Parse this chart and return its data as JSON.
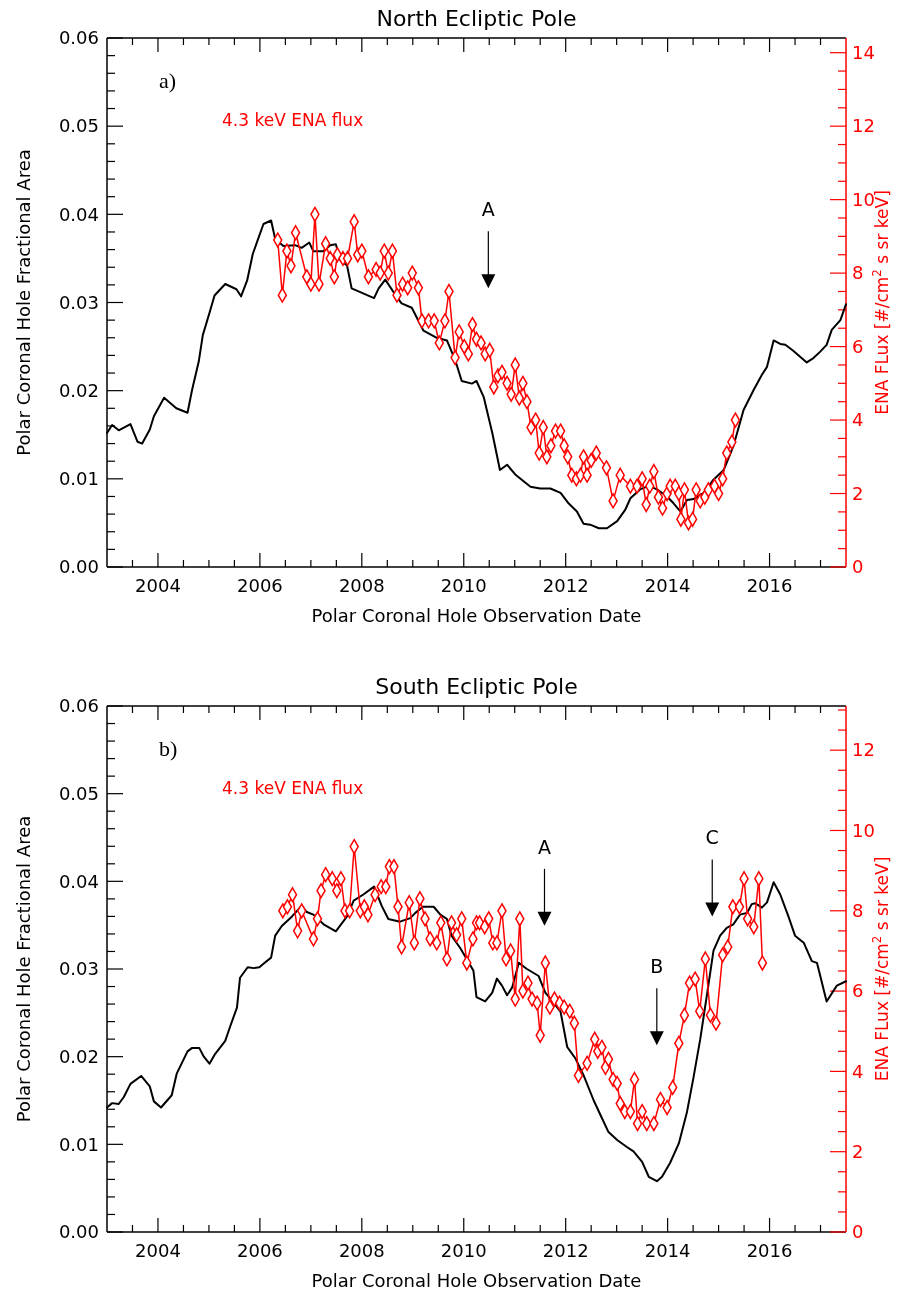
{
  "chart_data": [
    {
      "type": "line",
      "title": "North Ecliptic Pole",
      "xlabel": "Polar Coronal Hole Observation Date",
      "ylabel": "Polar Coronal Hole Fractional Area",
      "y2label": "ENA FLux [#/cm$^{2}$ s sr keV]",
      "annotations": [
        "a)",
        "A"
      ],
      "xlim": [
        2003,
        2017.5
      ],
      "ylim": [
        0,
        0.06
      ],
      "y2lim": [
        0,
        14.4
      ],
      "xticks": [
        {
          "value": 2003.5,
          "label": null
        },
        2004,
        {
          "value": 2004.5,
          "label": null
        },
        {
          "value": 2005,
          "label": null
        },
        {
          "value": 2005.5,
          "label": null
        },
        2006,
        {
          "value": 2006.5,
          "label": null
        },
        {
          "value": 2007,
          "label": null
        },
        {
          "value": 2007.5,
          "label": null
        },
        2008,
        {
          "value": 2008.5,
          "label": null
        },
        {
          "value": 2009,
          "label": null
        },
        {
          "value": 2009.5,
          "label": null
        },
        2010,
        {
          "value": 2010.5,
          "label": null
        },
        {
          "value": 2011,
          "label": null
        },
        {
          "value": 2011.5,
          "label": null
        },
        2012,
        {
          "value": 2012.5,
          "label": null
        },
        {
          "value": 2013,
          "label": null
        },
        {
          "value": 2013.5,
          "label": null
        },
        2014,
        {
          "value": 2014.5,
          "label": null
        },
        {
          "value": 2015,
          "label": null
        },
        {
          "value": 2015.5,
          "label": null
        },
        2016,
        {
          "value": 2016.5,
          "label": null
        },
        {
          "value": 2017,
          "label": null
        }
      ],
      "yticks": [
        {
          "value": 0,
          "label": "0.00"
        },
        {
          "value": 0.002,
          "label": null
        },
        {
          "value": 0.004,
          "label": null
        },
        {
          "value": 0.006,
          "label": null
        },
        {
          "value": 0.008,
          "label": null
        },
        {
          "value": 0.01,
          "label": "0.01"
        },
        {
          "value": 0.012,
          "label": null
        },
        {
          "value": 0.014,
          "label": null
        },
        {
          "value": 0.016,
          "label": null
        },
        {
          "value": 0.018,
          "label": null
        },
        {
          "value": 0.02,
          "label": "0.02"
        },
        {
          "value": 0.022,
          "label": null
        },
        {
          "value": 0.024,
          "label": null
        },
        {
          "value": 0.026,
          "label": null
        },
        {
          "value": 0.028,
          "label": null
        },
        {
          "value": 0.03,
          "label": "0.03"
        },
        {
          "value": 0.032,
          "label": null
        },
        {
          "value": 0.034,
          "label": null
        },
        {
          "value": 0.036,
          "label": null
        },
        {
          "value": 0.038,
          "label": null
        },
        {
          "value": 0.04,
          "label": "0.04"
        },
        {
          "value": 0.042,
          "label": null
        },
        {
          "value": 0.044,
          "label": null
        },
        {
          "value": 0.046,
          "label": null
        },
        {
          "value": 0.048,
          "label": null
        },
        {
          "value": 0.05,
          "label": "0.05"
        },
        {
          "value": 0.052,
          "label": null
        },
        {
          "value": 0.054,
          "label": null
        },
        {
          "value": 0.056,
          "label": null
        },
        {
          "value": 0.058,
          "label": null
        },
        {
          "value": 0.06,
          "label": "0.06"
        }
      ],
      "y2ticks": [
        0,
        {
          "value": 0.5,
          "label": null
        },
        {
          "value": 1,
          "label": null
        },
        {
          "value": 1.5,
          "label": null
        },
        2,
        {
          "value": 2.5,
          "label": null
        },
        {
          "value": 3,
          "label": null
        },
        {
          "value": 3.5,
          "label": null
        },
        4,
        {
          "value": 4.5,
          "label": null
        },
        {
          "value": 5,
          "label": null
        },
        {
          "value": 5.5,
          "label": null
        },
        6,
        {
          "value": 6.5,
          "label": null
        },
        {
          "value": 7,
          "label": null
        },
        {
          "value": 7.5,
          "label": null
        },
        8,
        {
          "value": 8.5,
          "label": null
        },
        {
          "value": 9,
          "label": null
        },
        {
          "value": 9.5,
          "label": null
        },
        10,
        {
          "value": 10.5,
          "label": null
        },
        {
          "value": 11,
          "label": null
        },
        {
          "value": 11.5,
          "label": null
        },
        12,
        {
          "value": 12.5,
          "label": null
        },
        {
          "value": 13,
          "label": null
        },
        {
          "value": 13.5,
          "label": null
        },
        14
      ],
      "series": [
        {
          "color": "#000000",
          "marker": "none",
          "x": [
            2003.0,
            2003.1,
            2003.23,
            2003.46,
            2003.6,
            2003.69,
            2003.84,
            2003.92,
            2004.12,
            2004.36,
            2004.58,
            2004.67,
            2004.8,
            2004.88,
            2005.01,
            2005.11,
            2005.32,
            2005.54,
            2005.63,
            2005.75,
            2005.86,
            2006.07,
            2006.22,
            2006.3,
            2006.46,
            2006.69,
            2006.82,
            2006.97,
            2007.05,
            2007.24,
            2007.38,
            2007.49,
            2007.58,
            2007.71,
            2007.8,
            2008.24,
            2008.33,
            2008.46,
            2008.69,
            2008.78,
            2008.98,
            2009.21,
            2009.47,
            2009.67,
            2009.83,
            2009.96,
            2010.16,
            2010.25,
            2010.39,
            2010.56,
            2010.71,
            2010.85,
            2011.01,
            2011.18,
            2011.31,
            2011.5,
            2011.7,
            2011.9,
            2012.06,
            2012.22,
            2012.35,
            2012.48,
            2012.65,
            2012.81,
            2013.01,
            2013.17,
            2013.27,
            2013.46,
            2013.63,
            2013.79,
            2013.99,
            2014.12,
            2014.25,
            2014.38,
            2014.51,
            2014.71,
            2014.9,
            2015.1,
            2015.29,
            2015.49,
            2015.69,
            2015.85,
            2015.95,
            2016.08,
            2016.21,
            2016.31,
            2016.47,
            2016.73,
            2016.86,
            2016.99,
            2017.12,
            2017.22,
            2017.39,
            2017.5
          ],
          "values": [
            0.0152,
            0.0161,
            0.0155,
            0.0162,
            0.0142,
            0.014,
            0.0156,
            0.0171,
            0.0192,
            0.018,
            0.0175,
            0.0201,
            0.0233,
            0.0263,
            0.0288,
            0.0308,
            0.0321,
            0.0315,
            0.0307,
            0.0325,
            0.0355,
            0.0389,
            0.0393,
            0.0372,
            0.0364,
            0.0365,
            0.0362,
            0.0368,
            0.0358,
            0.0358,
            0.0365,
            0.0366,
            0.0348,
            0.0342,
            0.0316,
            0.0305,
            0.0316,
            0.0326,
            0.0306,
            0.0299,
            0.0294,
            0.0268,
            0.026,
            0.0257,
            0.0235,
            0.0211,
            0.0208,
            0.0211,
            0.0193,
            0.0152,
            0.011,
            0.0116,
            0.0105,
            0.0097,
            0.0091,
            0.0089,
            0.0089,
            0.0084,
            0.0072,
            0.0063,
            0.0049,
            0.0048,
            0.0044,
            0.0044,
            0.0052,
            0.0065,
            0.0078,
            0.0088,
            0.0092,
            0.0088,
            0.008,
            0.0072,
            0.0063,
            0.0076,
            0.0077,
            0.0084,
            0.0099,
            0.011,
            0.0137,
            0.0178,
            0.0201,
            0.0218,
            0.0227,
            0.0257,
            0.0253,
            0.0252,
            0.0245,
            0.0232,
            0.0237,
            0.0244,
            0.0252,
            0.0269,
            0.028,
            0.0298
          ]
        },
        {
          "name": "4.3 keV ENA flux",
          "color": "#ff0000",
          "axis": "y2",
          "marker": "diamond",
          "x": [
            2006.35,
            2006.44,
            2006.53,
            2006.61,
            2006.7,
            2006.92,
            2007.0,
            2007.08,
            2007.16,
            2007.29,
            2007.38,
            2007.46,
            2007.52,
            2007.63,
            2007.72,
            2007.85,
            2007.92,
            2008.0,
            2008.13,
            2008.28,
            2008.36,
            2008.44,
            2008.52,
            2008.6,
            2008.69,
            2008.8,
            2008.9,
            2008.99,
            2009.11,
            2009.18,
            2009.31,
            2009.42,
            2009.52,
            2009.63,
            2009.71,
            2009.83,
            2009.91,
            2010.01,
            2010.09,
            2010.17,
            2010.25,
            2010.34,
            2010.42,
            2010.51,
            2010.59,
            2010.67,
            2010.75,
            2010.85,
            2010.93,
            2011.01,
            2011.09,
            2011.16,
            2011.24,
            2011.32,
            2011.41,
            2011.48,
            2011.56,
            2011.63,
            2011.71,
            2011.8,
            2011.9,
            2011.97,
            2012.04,
            2012.12,
            2012.21,
            2012.29,
            2012.35,
            2012.42,
            2012.5,
            2012.6,
            2012.8,
            2012.93,
            2013.07,
            2013.27,
            2013.4,
            2013.5,
            2013.58,
            2013.65,
            2013.73,
            2013.82,
            2013.9,
            2013.99,
            2014.05,
            2014.15,
            2014.22,
            2014.26,
            2014.33,
            2014.41,
            2014.49,
            2014.56,
            2014.64,
            2014.73,
            2014.8,
            2014.92,
            2015.0,
            2015.08,
            2015.16,
            2015.26,
            2015.33
          ],
          "values": [
            8.9,
            7.4,
            8.6,
            8.2,
            9.1,
            7.9,
            7.7,
            9.6,
            7.7,
            8.8,
            8.4,
            7.9,
            8.5,
            8.4,
            8.4,
            9.4,
            8.5,
            8.6,
            7.9,
            8.1,
            8.0,
            8.6,
            8.0,
            8.6,
            7.4,
            7.7,
            7.6,
            8.0,
            7.6,
            6.7,
            6.7,
            6.7,
            6.1,
            6.7,
            7.5,
            5.7,
            6.4,
            6.0,
            5.8,
            6.6,
            6.2,
            6.1,
            5.8,
            5.9,
            4.9,
            5.2,
            5.3,
            5.0,
            4.7,
            5.5,
            4.6,
            5.0,
            4.5,
            3.8,
            4.0,
            3.1,
            3.8,
            3.0,
            3.3,
            3.7,
            3.7,
            3.3,
            3.0,
            2.5,
            2.4,
            2.5,
            3.0,
            2.5,
            2.9,
            3.1,
            2.7,
            1.8,
            2.5,
            2.2,
            2.2,
            2.4,
            1.7,
            2.2,
            2.6,
            1.9,
            1.6,
            2.0,
            2.2,
            2.2,
            2.0,
            1.3,
            2.1,
            1.2,
            1.3,
            2.1,
            1.8,
            1.9,
            2.1,
            2.2,
            2.0,
            2.4,
            3.1,
            3.4,
            4.0
          ]
        }
      ]
    },
    {
      "type": "line",
      "title": "South Ecliptic Pole",
      "xlabel": "Polar Coronal Hole Observation Date",
      "ylabel": "Polar Coronal Hole Fractional Area",
      "y2label": "ENA FLux [#/cm$^{2}$ s sr keV]",
      "annotations": [
        "b)",
        "A",
        "B",
        "C"
      ],
      "xlim": [
        2003,
        2017.5
      ],
      "ylim": [
        0,
        0.06
      ],
      "y2lim": [
        0,
        13.1
      ],
      "xticks": [
        {
          "value": 2003.5,
          "label": null
        },
        2004,
        {
          "value": 2004.5,
          "label": null
        },
        {
          "value": 2005,
          "label": null
        },
        {
          "value": 2005.5,
          "label": null
        },
        2006,
        {
          "value": 2006.5,
          "label": null
        },
        {
          "value": 2007,
          "label": null
        },
        {
          "value": 2007.5,
          "label": null
        },
        2008,
        {
          "value": 2008.5,
          "label": null
        },
        {
          "value": 2009,
          "label": null
        },
        {
          "value": 2009.5,
          "label": null
        },
        2010,
        {
          "value": 2010.5,
          "label": null
        },
        {
          "value": 2011,
          "label": null
        },
        {
          "value": 2011.5,
          "label": null
        },
        2012,
        {
          "value": 2012.5,
          "label": null
        },
        {
          "value": 2013,
          "label": null
        },
        {
          "value": 2013.5,
          "label": null
        },
        2014,
        {
          "value": 2014.5,
          "label": null
        },
        {
          "value": 2015,
          "label": null
        },
        {
          "value": 2015.5,
          "label": null
        },
        2016,
        {
          "value": 2016.5,
          "label": null
        },
        {
          "value": 2017,
          "label": null
        }
      ],
      "yticks": [
        {
          "value": 0,
          "label": "0.00"
        },
        {
          "value": 0.002,
          "label": null
        },
        {
          "value": 0.004,
          "label": null
        },
        {
          "value": 0.006,
          "label": null
        },
        {
          "value": 0.008,
          "label": null
        },
        {
          "value": 0.01,
          "label": "0.01"
        },
        {
          "value": 0.012,
          "label": null
        },
        {
          "value": 0.014,
          "label": null
        },
        {
          "value": 0.016,
          "label": null
        },
        {
          "value": 0.018,
          "label": null
        },
        {
          "value": 0.02,
          "label": "0.02"
        },
        {
          "value": 0.022,
          "label": null
        },
        {
          "value": 0.024,
          "label": null
        },
        {
          "value": 0.026,
          "label": null
        },
        {
          "value": 0.028,
          "label": null
        },
        {
          "value": 0.03,
          "label": "0.03"
        },
        {
          "value": 0.032,
          "label": null
        },
        {
          "value": 0.034,
          "label": null
        },
        {
          "value": 0.036,
          "label": null
        },
        {
          "value": 0.038,
          "label": null
        },
        {
          "value": 0.04,
          "label": "0.04"
        },
        {
          "value": 0.042,
          "label": null
        },
        {
          "value": 0.044,
          "label": null
        },
        {
          "value": 0.046,
          "label": null
        },
        {
          "value": 0.048,
          "label": null
        },
        {
          "value": 0.05,
          "label": "0.05"
        },
        {
          "value": 0.052,
          "label": null
        },
        {
          "value": 0.054,
          "label": null
        },
        {
          "value": 0.056,
          "label": null
        },
        {
          "value": 0.058,
          "label": null
        },
        {
          "value": 0.06,
          "label": "0.06"
        }
      ],
      "y2ticks": [
        0,
        {
          "value": 0.5,
          "label": null
        },
        {
          "value": 1,
          "label": null
        },
        {
          "value": 1.5,
          "label": null
        },
        2,
        {
          "value": 2.5,
          "label": null
        },
        {
          "value": 3,
          "label": null
        },
        {
          "value": 3.5,
          "label": null
        },
        4,
        {
          "value": 4.5,
          "label": null
        },
        {
          "value": 5,
          "label": null
        },
        {
          "value": 5.5,
          "label": null
        },
        6,
        {
          "value": 6.5,
          "label": null
        },
        {
          "value": 7,
          "label": null
        },
        {
          "value": 7.5,
          "label": null
        },
        8,
        {
          "value": 8.5,
          "label": null
        },
        {
          "value": 9,
          "label": null
        },
        {
          "value": 9.5,
          "label": null
        },
        10,
        {
          "value": 10.5,
          "label": null
        },
        {
          "value": 11,
          "label": null
        },
        {
          "value": 11.5,
          "label": null
        },
        12,
        {
          "value": 12.5,
          "label": null
        },
        {
          "value": 13,
          "label": null
        }
      ],
      "series": [
        {
          "color": "#000000",
          "marker": "none",
          "x": [
            2003.0,
            2003.1,
            2003.23,
            2003.33,
            2003.46,
            2003.67,
            2003.84,
            2003.92,
            2004.06,
            2004.27,
            2004.37,
            2004.58,
            2004.67,
            2004.81,
            2004.9,
            2005.01,
            2005.12,
            2005.32,
            2005.42,
            2005.55,
            2005.61,
            2005.76,
            2005.88,
            2005.99,
            2006.07,
            2006.22,
            2006.3,
            2006.43,
            2006.63,
            2006.82,
            2006.92,
            2007.05,
            2007.25,
            2007.49,
            2007.71,
            2007.84,
            2008.03,
            2008.24,
            2008.39,
            2008.52,
            2008.75,
            2008.95,
            2009.05,
            2009.2,
            2009.41,
            2009.54,
            2009.67,
            2009.76,
            2009.93,
            2010.06,
            2010.19,
            2010.25,
            2010.32,
            2010.42,
            2010.56,
            2010.65,
            2010.75,
            2010.85,
            2010.95,
            2011.08,
            2011.24,
            2011.47,
            2011.6,
            2011.76,
            2011.9,
            2012.03,
            2012.19,
            2012.35,
            2012.55,
            2012.71,
            2012.84,
            2013.01,
            2013.2,
            2013.33,
            2013.5,
            2013.63,
            2013.79,
            2013.89,
            2014.05,
            2014.22,
            2014.38,
            2014.51,
            2014.64,
            2014.77,
            2014.9,
            2015.03,
            2015.16,
            2015.29,
            2015.42,
            2015.56,
            2015.65,
            2015.72,
            2015.85,
            2015.95,
            2016.08,
            2016.21,
            2016.37,
            2016.5,
            2016.67,
            2016.83,
            2016.93,
            2017.12,
            2017.32,
            2017.5
          ],
          "values": [
            0.0142,
            0.0147,
            0.0146,
            0.0154,
            0.0169,
            0.0178,
            0.0166,
            0.0149,
            0.0142,
            0.0156,
            0.0181,
            0.0206,
            0.021,
            0.021,
            0.02,
            0.0192,
            0.0203,
            0.0218,
            0.0235,
            0.0256,
            0.029,
            0.0302,
            0.0301,
            0.0302,
            0.0306,
            0.0313,
            0.0338,
            0.0349,
            0.036,
            0.0372,
            0.0365,
            0.0362,
            0.0351,
            0.0343,
            0.036,
            0.0378,
            0.0385,
            0.0394,
            0.0372,
            0.0357,
            0.0354,
            0.0358,
            0.0364,
            0.0371,
            0.0371,
            0.0362,
            0.0357,
            0.0338,
            0.0324,
            0.0311,
            0.0298,
            0.0268,
            0.0266,
            0.0263,
            0.0273,
            0.0289,
            0.0281,
            0.027,
            0.0279,
            0.0307,
            0.03,
            0.0292,
            0.0273,
            0.0262,
            0.0251,
            0.0211,
            0.0198,
            0.0179,
            0.015,
            0.013,
            0.0114,
            0.0105,
            0.0097,
            0.0092,
            0.008,
            0.0063,
            0.0058,
            0.0063,
            0.0079,
            0.0101,
            0.0137,
            0.0177,
            0.022,
            0.027,
            0.0321,
            0.0338,
            0.0347,
            0.0351,
            0.0362,
            0.0364,
            0.0374,
            0.0375,
            0.037,
            0.0376,
            0.0399,
            0.0385,
            0.036,
            0.0338,
            0.033,
            0.0309,
            0.0307,
            0.0263,
            0.0281,
            0.0286
          ]
        },
        {
          "name": "4.3 keV ENA flux",
          "color": "#ff0000",
          "axis": "y2",
          "marker": "diamond",
          "x": [
            2006.45,
            2006.54,
            2006.64,
            2006.74,
            2006.82,
            2007.05,
            2007.13,
            2007.2,
            2007.29,
            2007.42,
            2007.51,
            2007.59,
            2007.67,
            2007.76,
            2007.85,
            2007.97,
            2008.05,
            2008.12,
            2008.26,
            2008.38,
            2008.47,
            2008.54,
            2008.63,
            2008.71,
            2008.78,
            2008.93,
            2009.03,
            2009.14,
            2009.24,
            2009.34,
            2009.47,
            2009.55,
            2009.67,
            2009.76,
            2009.86,
            2009.96,
            2010.06,
            2010.18,
            2010.25,
            2010.31,
            2010.41,
            2010.49,
            2010.57,
            2010.65,
            2010.75,
            2010.83,
            2010.92,
            2011.01,
            2011.1,
            2011.16,
            2011.26,
            2011.34,
            2011.44,
            2011.5,
            2011.6,
            2011.69,
            2011.78,
            2011.88,
            2011.97,
            2012.08,
            2012.17,
            2012.25,
            2012.42,
            2012.57,
            2012.63,
            2012.71,
            2012.78,
            2012.84,
            2012.93,
            2013.01,
            2013.07,
            2013.16,
            2013.27,
            2013.35,
            2013.41,
            2013.5,
            2013.59,
            2013.73,
            2013.86,
            2013.99,
            2014.1,
            2014.22,
            2014.33,
            2014.43,
            2014.54,
            2014.63,
            2014.74,
            2014.84,
            2014.95,
            2015.08,
            2015.18,
            2015.28,
            2015.41,
            2015.5,
            2015.57,
            2015.69,
            2015.79,
            2015.86
          ],
          "values": [
            8.0,
            8.1,
            8.4,
            7.5,
            8.0,
            7.3,
            7.8,
            8.5,
            8.9,
            8.8,
            8.5,
            8.8,
            8.0,
            8.0,
            9.6,
            8.0,
            8.1,
            7.9,
            8.4,
            8.6,
            8.6,
            9.1,
            9.1,
            8.1,
            7.1,
            8.2,
            7.2,
            8.3,
            7.8,
            7.3,
            7.2,
            7.7,
            6.8,
            7.7,
            7.4,
            7.8,
            6.7,
            7.3,
            7.7,
            7.7,
            7.6,
            7.8,
            7.2,
            7.2,
            8.0,
            6.8,
            7.0,
            5.8,
            7.8,
            6.0,
            6.2,
            5.8,
            5.7,
            4.9,
            6.7,
            5.6,
            5.8,
            5.7,
            5.6,
            5.5,
            5.2,
            3.9,
            4.2,
            4.8,
            4.5,
            4.6,
            4.1,
            4.3,
            3.8,
            3.7,
            3.2,
            3.0,
            3.0,
            3.8,
            2.7,
            3.0,
            2.7,
            2.7,
            3.3,
            3.1,
            3.6,
            4.7,
            5.4,
            6.2,
            6.3,
            5.5,
            6.8,
            5.4,
            5.2,
            6.9,
            7.1,
            8.1,
            8.1,
            8.8,
            7.8,
            7.6,
            8.8,
            6.7
          ]
        }
      ]
    }
  ]
}
